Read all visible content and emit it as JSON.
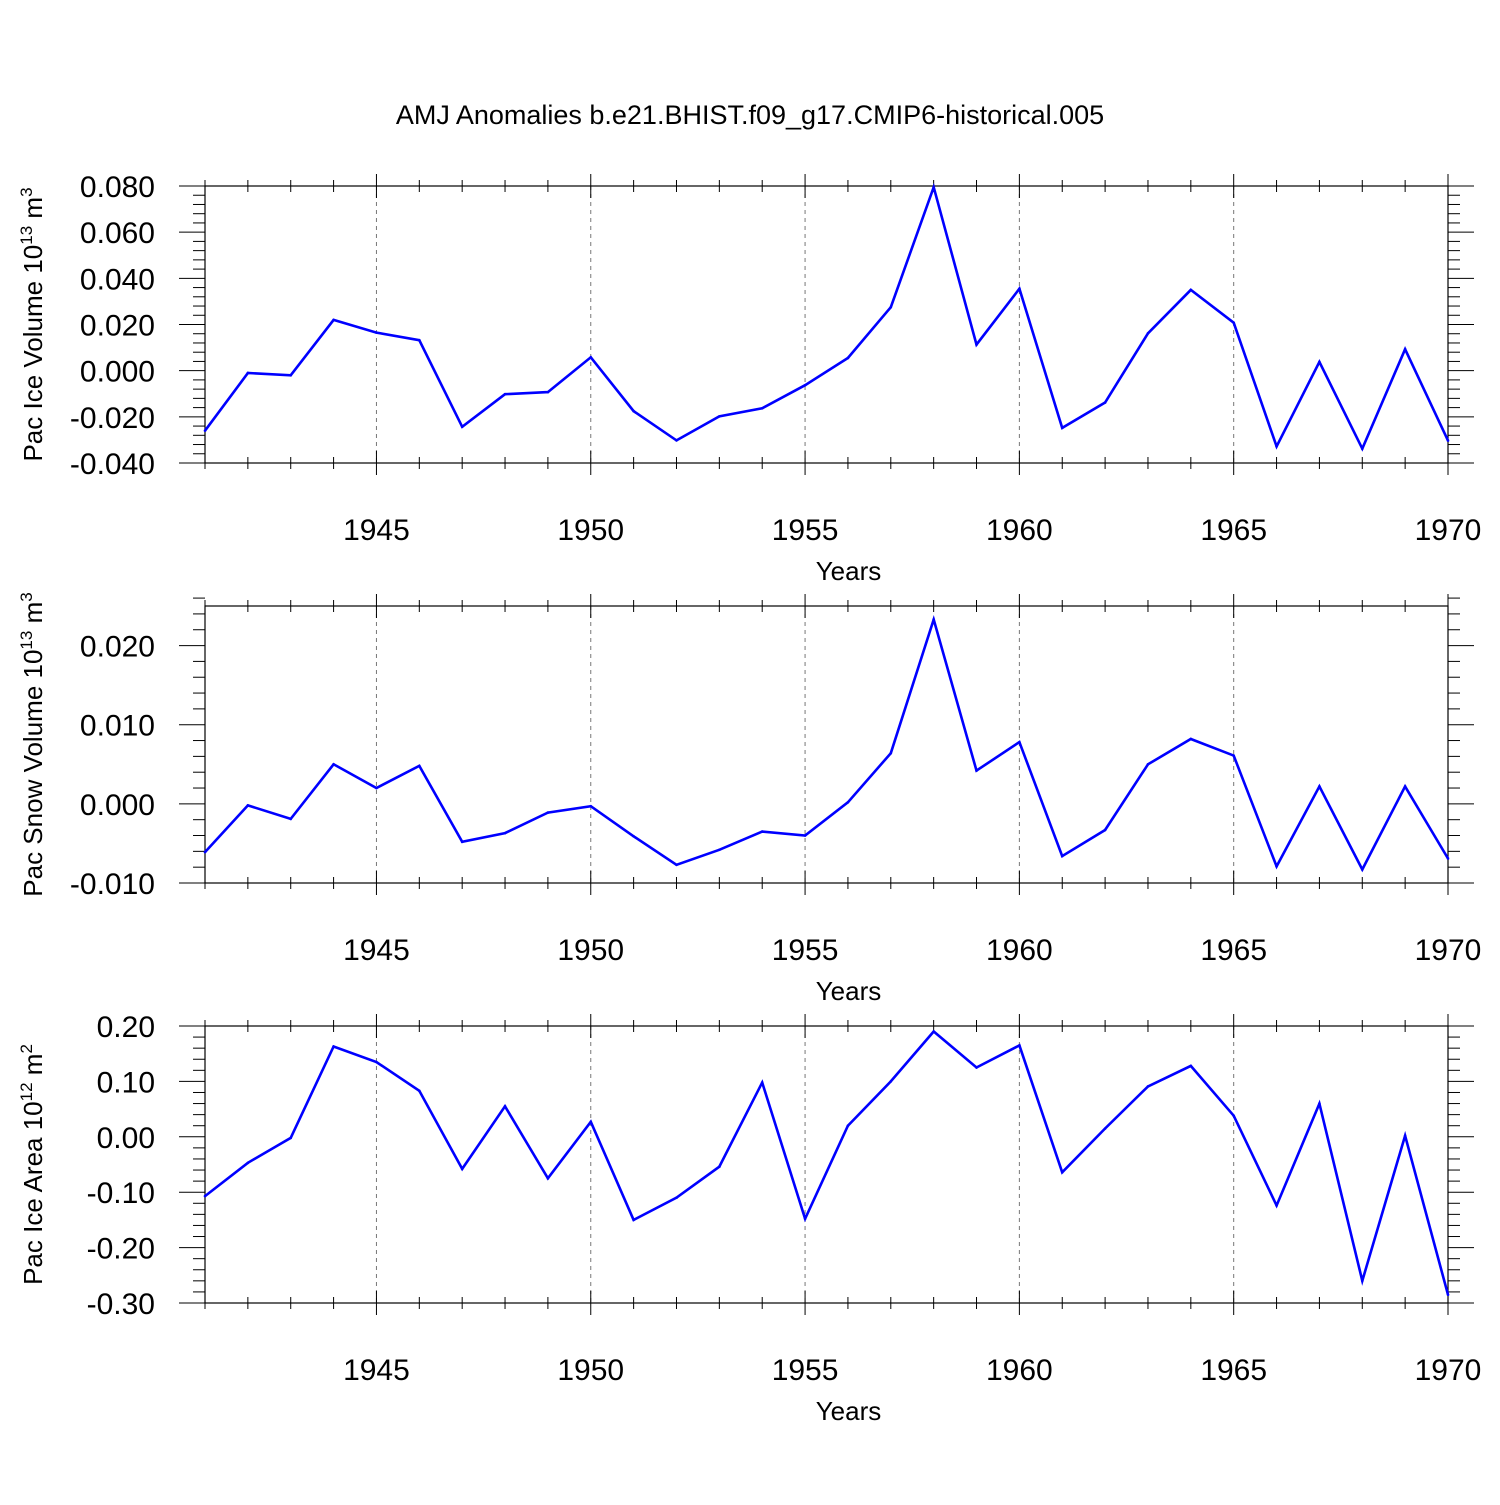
{
  "title": "AMJ Anomalies b.e21.BHIST.f09_g17.CMIP6-historical.005",
  "colors": {
    "line": "#0000ff",
    "grid": "#777777",
    "axis": "#000000"
  },
  "chart_data": [
    {
      "type": "line",
      "name": "pac-ice-volume",
      "ylabel": "Pac Ice Volume 10",
      "ylabel_exp": "13",
      "ylabel_unit": " m",
      "ylabel_unit_exp": "3",
      "xlabel": "Years",
      "xlim": [
        1941,
        1970
      ],
      "ylim": [
        -0.04,
        0.08
      ],
      "yticks": [
        -0.04,
        -0.02,
        0.0,
        0.02,
        0.04,
        0.06,
        0.08
      ],
      "ytick_labels": [
        "-0.040",
        "-0.020",
        "0.000",
        "0.020",
        "0.040",
        "0.060",
        "0.080"
      ],
      "xticks": [
        1945,
        1950,
        1955,
        1960,
        1965,
        1970
      ],
      "xtick_labels": [
        "1945",
        "1950",
        "1955",
        "1960",
        "1965",
        "1970"
      ],
      "grid_x": [
        1945,
        1950,
        1955,
        1960,
        1965
      ],
      "x": [
        1941,
        1942,
        1943,
        1944,
        1945,
        1946,
        1947,
        1948,
        1949,
        1950,
        1951,
        1952,
        1953,
        1954,
        1955,
        1956,
        1957,
        1958,
        1959,
        1960,
        1961,
        1962,
        1963,
        1964,
        1965,
        1966,
        1967,
        1968,
        1969,
        1970
      ],
      "values": [
        -0.026,
        -0.001,
        -0.002,
        0.022,
        0.0165,
        0.0132,
        -0.0243,
        -0.0102,
        -0.0093,
        0.0058,
        -0.0175,
        -0.0302,
        -0.0198,
        -0.0163,
        -0.0063,
        0.0055,
        0.0275,
        0.0795,
        0.0113,
        0.0355,
        -0.0248,
        -0.0138,
        0.0162,
        0.035,
        0.0208,
        -0.0328,
        0.0038,
        -0.0338,
        0.0093,
        -0.0303
      ]
    },
    {
      "type": "line",
      "name": "pac-snow-volume",
      "ylabel": "Pac Snow Volume 10",
      "ylabel_exp": "13",
      "ylabel_unit": " m",
      "ylabel_unit_exp": "3",
      "xlabel": "Years",
      "xlim": [
        1941,
        1970
      ],
      "ylim": [
        -0.01,
        0.025
      ],
      "yticks": [
        -0.01,
        0.0,
        0.01,
        0.02
      ],
      "ytick_labels": [
        "-0.010",
        "0.000",
        "0.010",
        "0.020"
      ],
      "xticks": [
        1945,
        1950,
        1955,
        1960,
        1965,
        1970
      ],
      "xtick_labels": [
        "1945",
        "1950",
        "1955",
        "1960",
        "1965",
        "1970"
      ],
      "grid_x": [
        1945,
        1950,
        1955,
        1960,
        1965
      ],
      "x": [
        1941,
        1942,
        1943,
        1944,
        1945,
        1946,
        1947,
        1948,
        1949,
        1950,
        1951,
        1952,
        1953,
        1954,
        1955,
        1956,
        1957,
        1958,
        1959,
        1960,
        1961,
        1962,
        1963,
        1964,
        1965,
        1966,
        1967,
        1968,
        1969,
        1970
      ],
      "values": [
        -0.0061,
        -0.0002,
        -0.0019,
        0.005,
        0.002,
        0.0048,
        -0.0048,
        -0.0037,
        -0.0011,
        -0.0003,
        -0.0041,
        -0.0077,
        -0.0058,
        -0.0035,
        -0.004,
        0.0002,
        0.0064,
        0.0233,
        0.0042,
        0.0078,
        -0.0066,
        -0.0033,
        0.005,
        0.0082,
        0.0061,
        -0.0079,
        0.0022,
        -0.0083,
        0.0022,
        -0.0069
      ]
    },
    {
      "type": "line",
      "name": "pac-ice-area",
      "ylabel": "Pac Ice Area 10",
      "ylabel_exp": "12",
      "ylabel_unit": " m",
      "ylabel_unit_exp": "2",
      "xlabel": "Years",
      "xlim": [
        1941,
        1970
      ],
      "ylim": [
        -0.3,
        0.2
      ],
      "yticks": [
        -0.3,
        -0.2,
        -0.1,
        0.0,
        0.1,
        0.2
      ],
      "ytick_labels": [
        "-0.30",
        "-0.20",
        "-0.10",
        "0.00",
        "0.10",
        "0.20"
      ],
      "xticks": [
        1945,
        1950,
        1955,
        1960,
        1965,
        1970
      ],
      "xtick_labels": [
        "1945",
        "1950",
        "1955",
        "1960",
        "1965",
        "1970"
      ],
      "grid_x": [
        1945,
        1950,
        1955,
        1960,
        1965
      ],
      "x": [
        1941,
        1942,
        1943,
        1944,
        1945,
        1946,
        1947,
        1948,
        1949,
        1950,
        1951,
        1952,
        1953,
        1954,
        1955,
        1956,
        1957,
        1958,
        1959,
        1960,
        1961,
        1962,
        1963,
        1964,
        1965,
        1966,
        1967,
        1968,
        1969,
        1970
      ],
      "values": [
        -0.107,
        -0.047,
        -0.002,
        0.163,
        0.135,
        0.083,
        -0.058,
        0.055,
        -0.075,
        0.027,
        -0.15,
        -0.11,
        -0.054,
        0.098,
        -0.148,
        0.02,
        0.1,
        0.19,
        0.125,
        0.165,
        -0.064,
        0.015,
        0.091,
        0.128,
        0.038,
        -0.124,
        0.06,
        -0.26,
        0.002,
        -0.285
      ]
    }
  ]
}
